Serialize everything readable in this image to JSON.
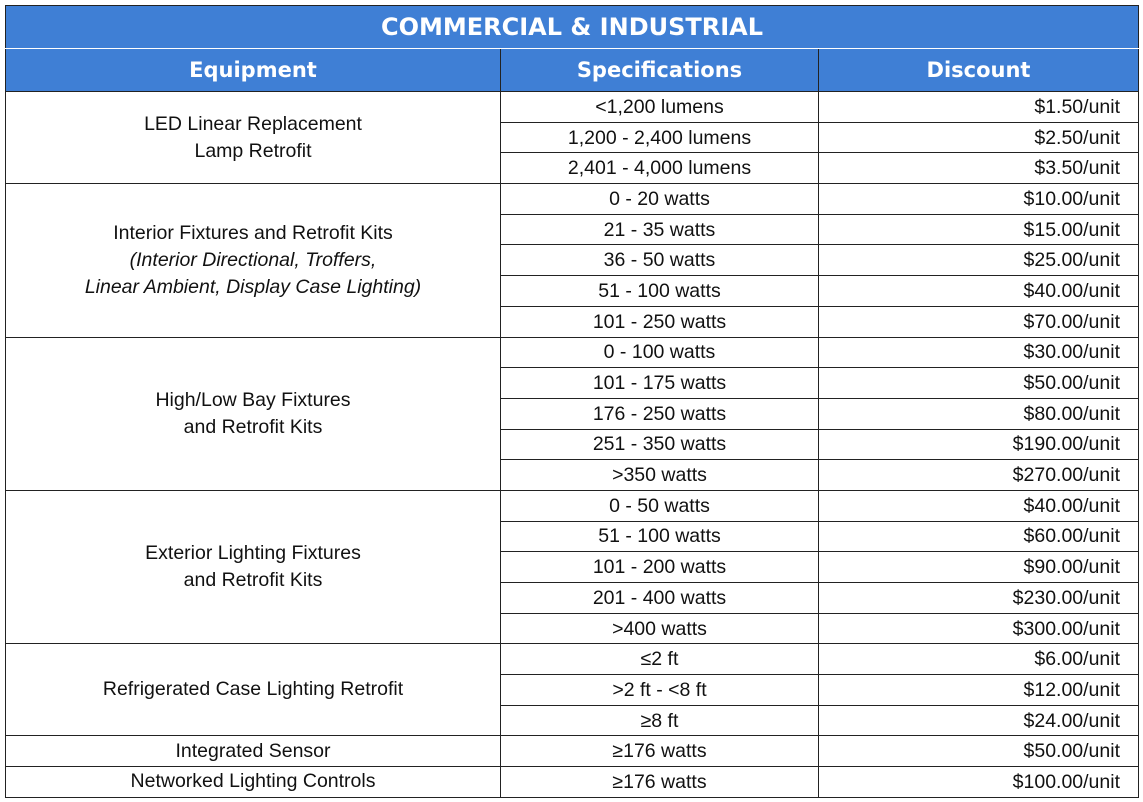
{
  "table": {
    "title": "COMMERCIAL & INDUSTRIAL",
    "headers": [
      "Equipment",
      "Specifications",
      "Discount"
    ],
    "groups": [
      {
        "equipment_lines": [
          "LED Linear Replacement",
          "Lamp Retrofit"
        ],
        "note_lines": [],
        "rows": [
          [
            "<1,200 lumens",
            "$1.50/unit"
          ],
          [
            "1,200 - 2,400 lumens",
            "$2.50/unit"
          ],
          [
            "2,401 - 4,000 lumens",
            "$3.50/unit"
          ]
        ]
      },
      {
        "equipment_lines": [
          "Interior Fixtures and Retrofit Kits"
        ],
        "note_lines": [
          "(Interior Directional, Troffers,",
          "Linear Ambient, Display Case Lighting)"
        ],
        "rows": [
          [
            "0 - 20 watts",
            "$10.00/unit"
          ],
          [
            "21 - 35 watts",
            "$15.00/unit"
          ],
          [
            "36 - 50 watts",
            "$25.00/unit"
          ],
          [
            "51 - 100 watts",
            "$40.00/unit"
          ],
          [
            "101 - 250 watts",
            "$70.00/unit"
          ]
        ]
      },
      {
        "equipment_lines": [
          "High/Low Bay Fixtures",
          "and Retrofit Kits"
        ],
        "note_lines": [],
        "rows": [
          [
            "0 - 100 watts",
            "$30.00/unit"
          ],
          [
            "101 - 175 watts",
            "$50.00/unit"
          ],
          [
            "176 - 250 watts",
            "$80.00/unit"
          ],
          [
            "251 - 350 watts",
            "$190.00/unit"
          ],
          [
            ">350 watts",
            "$270.00/unit"
          ]
        ]
      },
      {
        "equipment_lines": [
          "Exterior Lighting Fixtures",
          "and Retrofit Kits"
        ],
        "note_lines": [],
        "rows": [
          [
            "0 - 50 watts",
            "$40.00/unit"
          ],
          [
            "51 - 100 watts",
            "$60.00/unit"
          ],
          [
            "101 - 200 watts",
            "$90.00/unit"
          ],
          [
            "201 - 400 watts",
            "$230.00/unit"
          ],
          [
            ">400 watts",
            "$300.00/unit"
          ]
        ]
      },
      {
        "equipment_lines": [
          "Refrigerated Case Lighting Retrofit"
        ],
        "note_lines": [],
        "rows": [
          [
            "≤2 ft",
            "$6.00/unit"
          ],
          [
            ">2 ft - <8 ft",
            "$12.00/unit"
          ],
          [
            "≥8 ft",
            "$24.00/unit"
          ]
        ]
      },
      {
        "equipment_lines": [
          "Integrated Sensor"
        ],
        "note_lines": [],
        "rows": [
          [
            "≥176 watts",
            "$50.00/unit"
          ]
        ]
      },
      {
        "equipment_lines": [
          "Networked Lighting Controls"
        ],
        "note_lines": [],
        "rows": [
          [
            "≥176 watts",
            "$100.00/unit"
          ]
        ]
      }
    ]
  }
}
